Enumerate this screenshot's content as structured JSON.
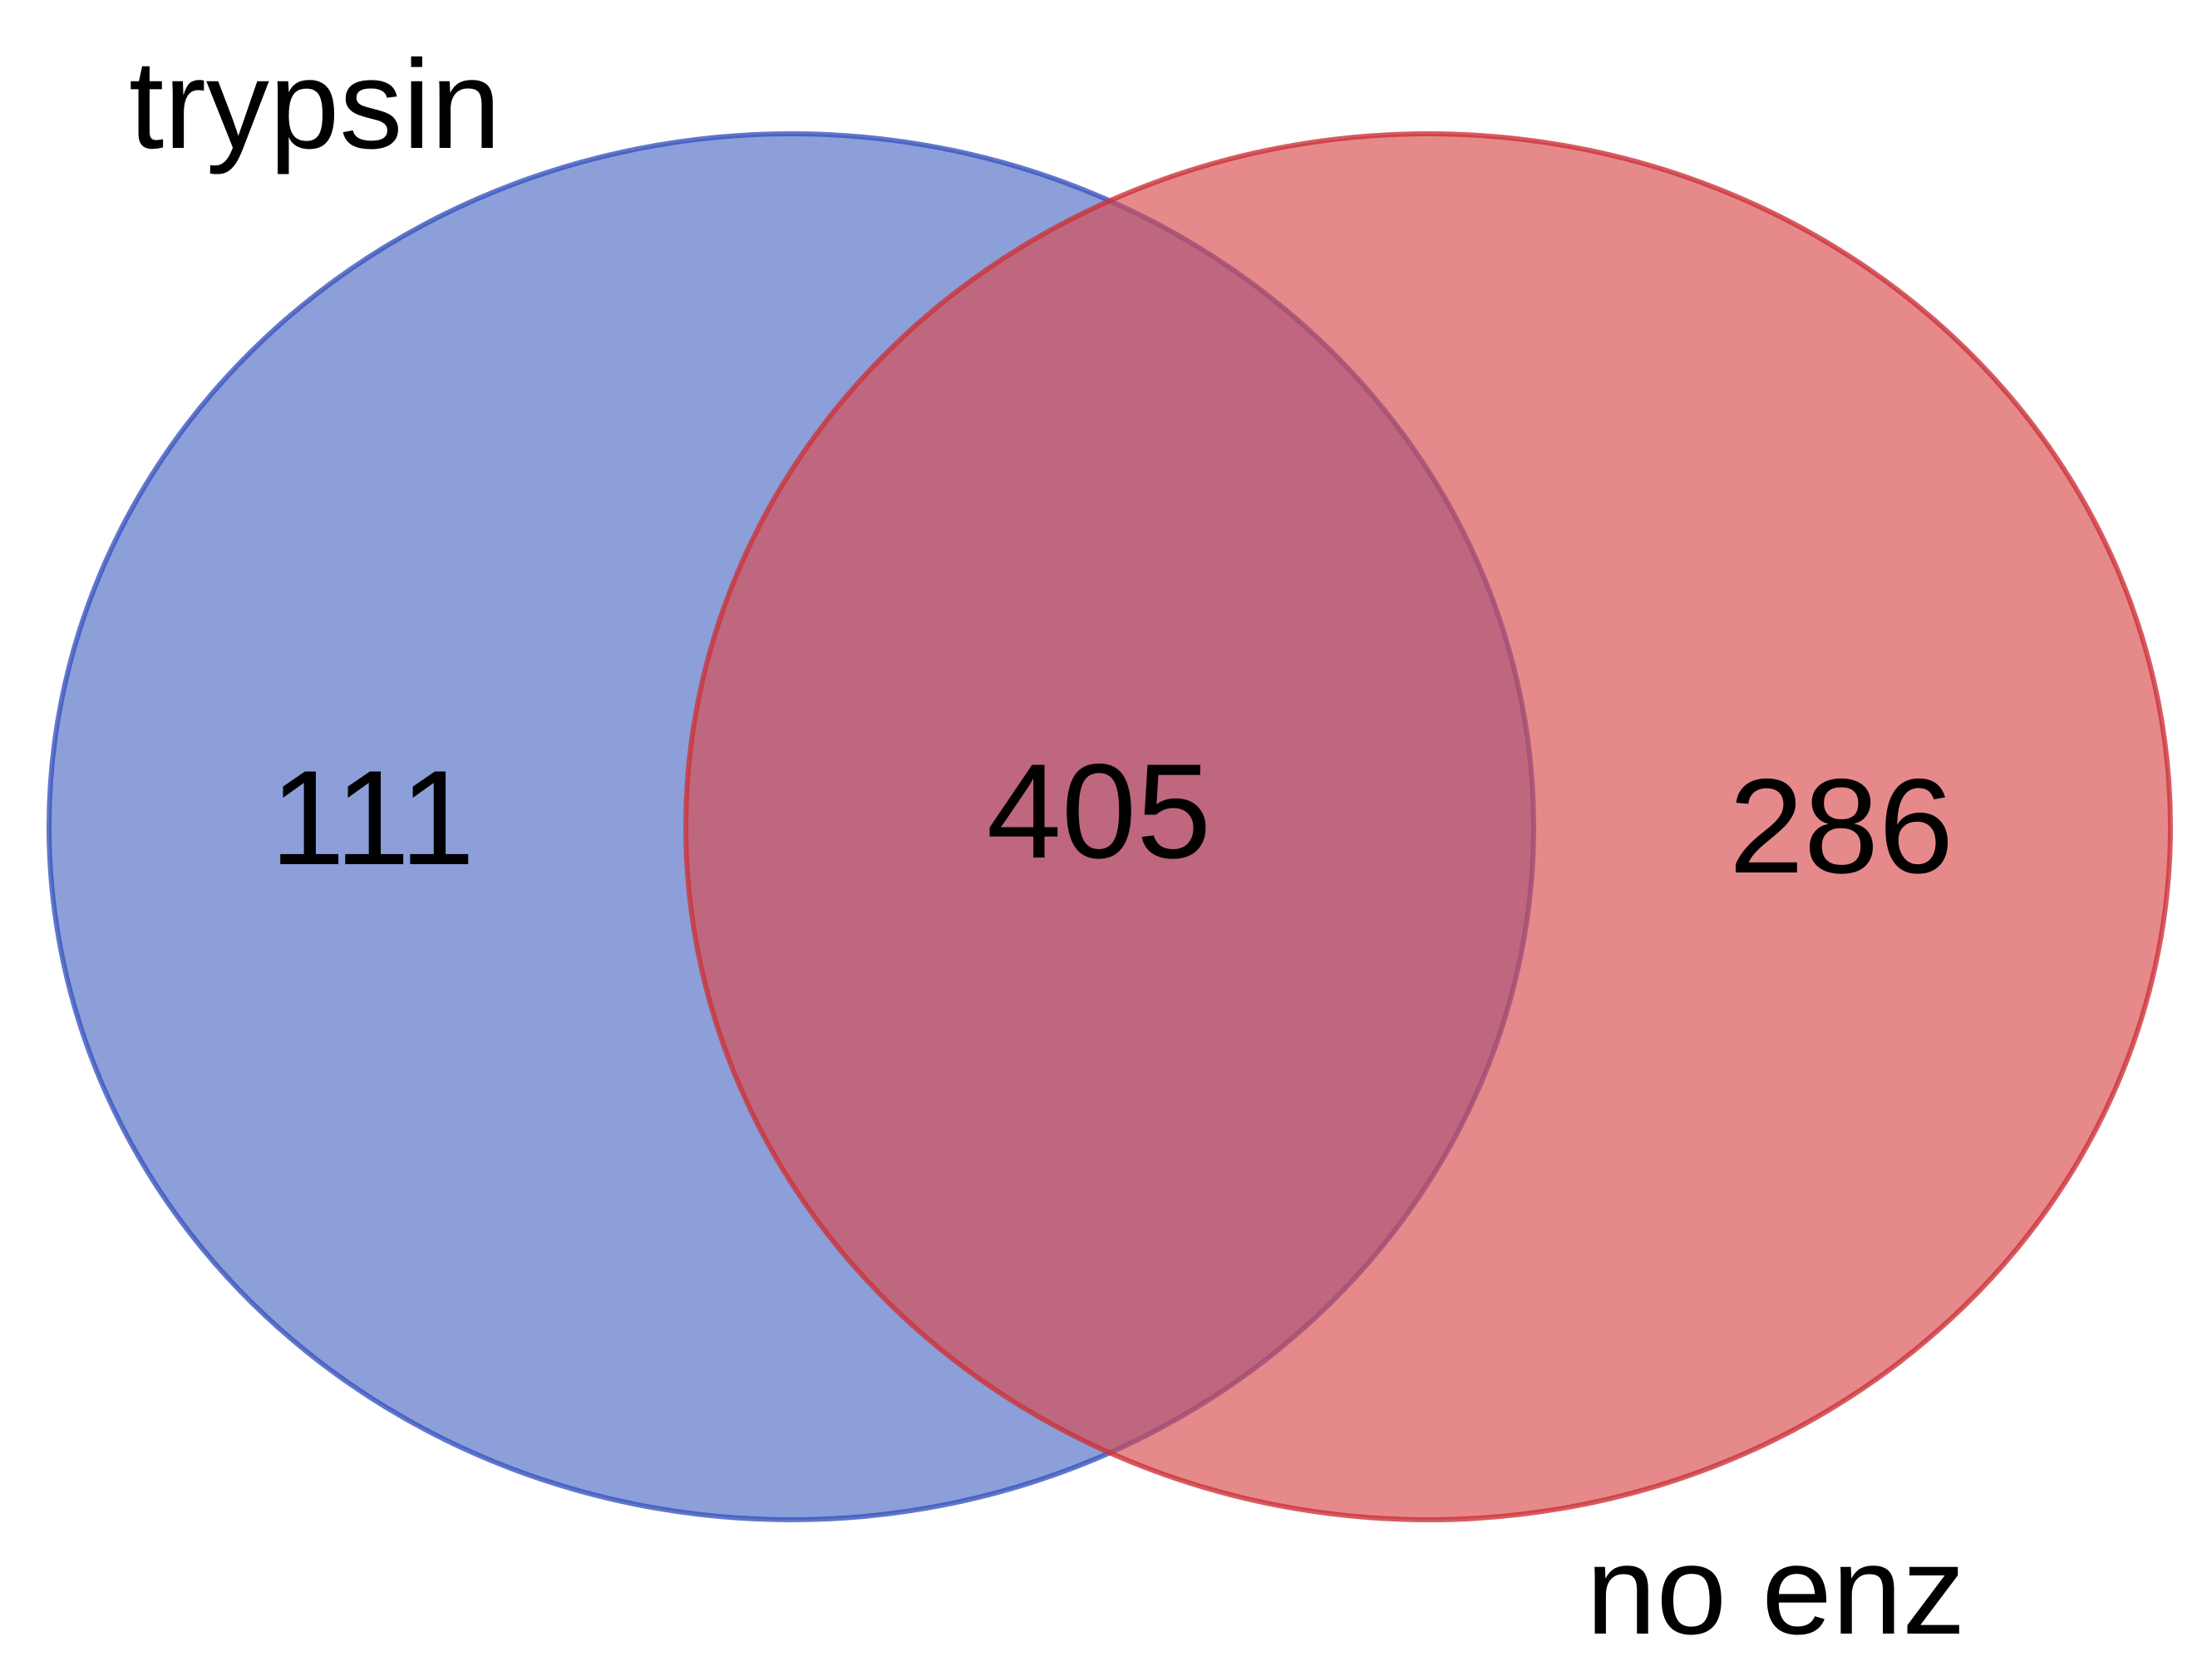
{
  "diagram": {
    "type": "venn",
    "sets": [
      {
        "name": "trypsin",
        "color": "#4f6bc4",
        "stroke": "#3a55be"
      },
      {
        "name": "no enz",
        "color": "#d84a4d",
        "stroke": "#cc3339"
      }
    ],
    "regions": {
      "trypsin_only": "111",
      "intersection": "405",
      "no_enz_only": "286"
    },
    "intersection_color": "#a95a75"
  }
}
